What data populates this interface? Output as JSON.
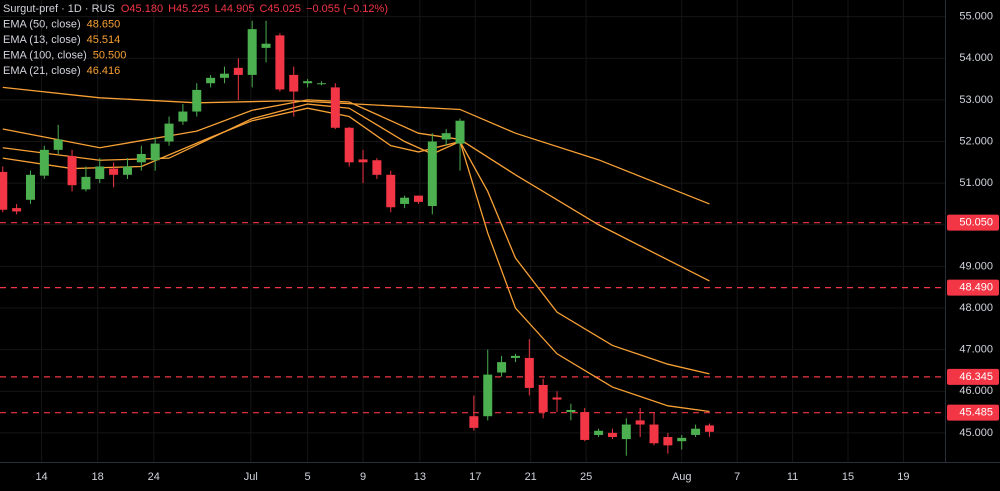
{
  "chart_data": {
    "type": "candlestick",
    "title": "Surgut-pref · 1D · RUS",
    "header_values": [
      {
        "text": "O45.180",
        "color": "#f23645"
      },
      {
        "text": "H45.225",
        "color": "#f23645"
      },
      {
        "text": "L44.905",
        "color": "#f23645"
      },
      {
        "text": "C45.025",
        "color": "#f23645"
      },
      {
        "text": "−0.055 (−0.12%)",
        "color": "#f23645"
      }
    ],
    "up_color": "#4caf50",
    "down_color": "#f23645",
    "open": [
      51.27,
      50.4,
      50.6,
      51.18,
      51.8,
      51.65,
      50.85,
      51.1,
      51.35,
      51.2,
      51.5,
      51.55,
      52.0,
      52.48,
      52.72,
      53.4,
      53.53,
      53.77,
      53.6,
      54.25,
      54.55,
      53.6,
      53.4,
      53.38,
      53.3,
      52.33,
      51.57,
      51.55,
      51.2,
      50.5,
      50.7,
      50.45,
      52.05,
      51.95,
      45.4,
      45.4,
      46.45,
      46.8,
      46.8,
      46.15,
      45.85,
      45.5,
      45.5,
      44.95,
      45.0,
      44.85,
      45.3,
      45.2,
      44.9,
      44.8,
      44.95,
      45.18
    ],
    "high": [
      51.4,
      50.5,
      51.3,
      51.9,
      52.4,
      51.8,
      51.4,
      51.6,
      51.5,
      51.6,
      51.9,
      52.1,
      52.6,
      52.9,
      53.4,
      53.6,
      53.8,
      54.0,
      54.9,
      54.9,
      54.6,
      53.8,
      53.5,
      53.45,
      53.4,
      52.35,
      51.8,
      51.6,
      51.3,
      50.7,
      50.7,
      52.2,
      52.3,
      52.55,
      45.9,
      47.0,
      46.85,
      46.9,
      47.25,
      46.3,
      46.0,
      45.7,
      45.6,
      45.1,
      45.1,
      45.35,
      45.6,
      45.5,
      45.0,
      44.95,
      45.2,
      45.225
    ],
    "low": [
      50.3,
      50.25,
      50.5,
      51.1,
      51.7,
      50.8,
      50.8,
      51.0,
      50.9,
      51.1,
      51.3,
      51.3,
      51.9,
      52.4,
      52.6,
      53.3,
      53.4,
      53.0,
      53.3,
      53.9,
      53.2,
      52.6,
      53.3,
      53.35,
      52.3,
      51.4,
      51.0,
      51.1,
      50.3,
      50.4,
      50.5,
      50.25,
      51.9,
      51.3,
      45.05,
      45.3,
      46.35,
      46.7,
      45.9,
      45.35,
      45.5,
      45.3,
      44.8,
      44.9,
      44.85,
      44.45,
      44.9,
      44.7,
      44.5,
      44.6,
      44.9,
      44.905
    ],
    "close": [
      50.36,
      50.32,
      51.2,
      51.8,
      52.05,
      50.95,
      51.15,
      51.4,
      51.2,
      51.4,
      51.7,
      51.95,
      52.43,
      52.72,
      53.24,
      53.53,
      53.63,
      53.6,
      54.7,
      54.35,
      53.25,
      53.2,
      53.45,
      53.4,
      52.33,
      51.5,
      51.5,
      51.2,
      50.42,
      50.65,
      50.55,
      52.0,
      52.2,
      52.5,
      45.12,
      46.4,
      46.7,
      46.85,
      46.08,
      45.5,
      45.8,
      45.55,
      44.83,
      45.05,
      44.9,
      45.2,
      45.2,
      44.75,
      44.7,
      44.88,
      45.1,
      45.025
    ],
    "series": [
      {
        "name": "EMA (50, close)",
        "value_label": "48.650",
        "color": "#f7a035",
        "x": [
          0,
          7,
          14,
          18,
          22,
          25,
          30,
          33,
          37,
          43,
          51
        ],
        "values": [
          52.3,
          51.85,
          52.25,
          52.75,
          53.0,
          52.95,
          52.2,
          52.05,
          51.2,
          50.0,
          48.65
        ]
      },
      {
        "name": "EMA (13, close)",
        "value_label": "45.514",
        "color": "#f7a035",
        "x": [
          0,
          5,
          10,
          15,
          18,
          22,
          25,
          28,
          30,
          33,
          35,
          37,
          40,
          44,
          48,
          51
        ],
        "values": [
          51.6,
          51.35,
          51.4,
          52.1,
          52.5,
          52.8,
          52.6,
          51.9,
          51.75,
          52.0,
          49.8,
          48.0,
          46.9,
          46.1,
          45.65,
          45.514
        ]
      },
      {
        "name": "EMA (100, close)",
        "value_label": "50.500",
        "color": "#f7a035",
        "x": [
          0,
          7,
          14,
          21,
          33,
          37,
          43,
          51
        ],
        "values": [
          53.3,
          53.05,
          52.93,
          52.98,
          52.77,
          52.2,
          51.56,
          50.5
        ]
      },
      {
        "name": "EMA (21, close)",
        "value_label": "46.416",
        "color": "#f7a035",
        "x": [
          0,
          7,
          12,
          18,
          22,
          25,
          29,
          31,
          33,
          35,
          37,
          40,
          44,
          48,
          51
        ],
        "values": [
          51.85,
          51.55,
          51.6,
          52.55,
          52.9,
          52.8,
          52.0,
          51.7,
          52.0,
          50.8,
          49.2,
          47.9,
          47.1,
          46.65,
          46.416
        ]
      }
    ],
    "levels": [
      {
        "value": 50.05,
        "label": "50.050"
      },
      {
        "value": 48.49,
        "label": "48.490"
      },
      {
        "value": 46.345,
        "label": "46.345"
      },
      {
        "value": 45.485,
        "label": "45.485"
      }
    ],
    "level_color": "#f23645",
    "xlim": [
      -0.2,
      68
    ],
    "xticks": [
      {
        "value": 2.8,
        "label": "14"
      },
      {
        "value": 6.85,
        "label": "18"
      },
      {
        "value": 10.9,
        "label": "24"
      },
      {
        "value": 17.9,
        "label": "Jul"
      },
      {
        "value": 22,
        "label": "5"
      },
      {
        "value": 26,
        "label": "9"
      },
      {
        "value": 30.1,
        "label": "13"
      },
      {
        "value": 34.1,
        "label": "17"
      },
      {
        "value": 38.1,
        "label": "21"
      },
      {
        "value": 42.1,
        "label": "25"
      },
      {
        "value": 49,
        "label": "Aug"
      },
      {
        "value": 53,
        "label": "7"
      },
      {
        "value": 57,
        "label": "11"
      },
      {
        "value": 61,
        "label": "15"
      },
      {
        "value": 65,
        "label": "19"
      }
    ],
    "ylim": [
      44.3,
      55.4
    ],
    "yticks": [
      {
        "value": 45,
        "label": "45.000"
      },
      {
        "value": 46,
        "label": "46.000"
      },
      {
        "value": 47,
        "label": "47.000"
      },
      {
        "value": 48,
        "label": "48.000"
      },
      {
        "value": 49,
        "label": "49.000"
      },
      {
        "value": 50,
        "label": "50.000"
      },
      {
        "value": 51,
        "label": "51.000"
      },
      {
        "value": 52,
        "label": "52.000"
      },
      {
        "value": 53,
        "label": "53.000"
      },
      {
        "value": 54,
        "label": "54.000"
      },
      {
        "value": 55,
        "label": "55.000"
      }
    ],
    "grid": true
  }
}
